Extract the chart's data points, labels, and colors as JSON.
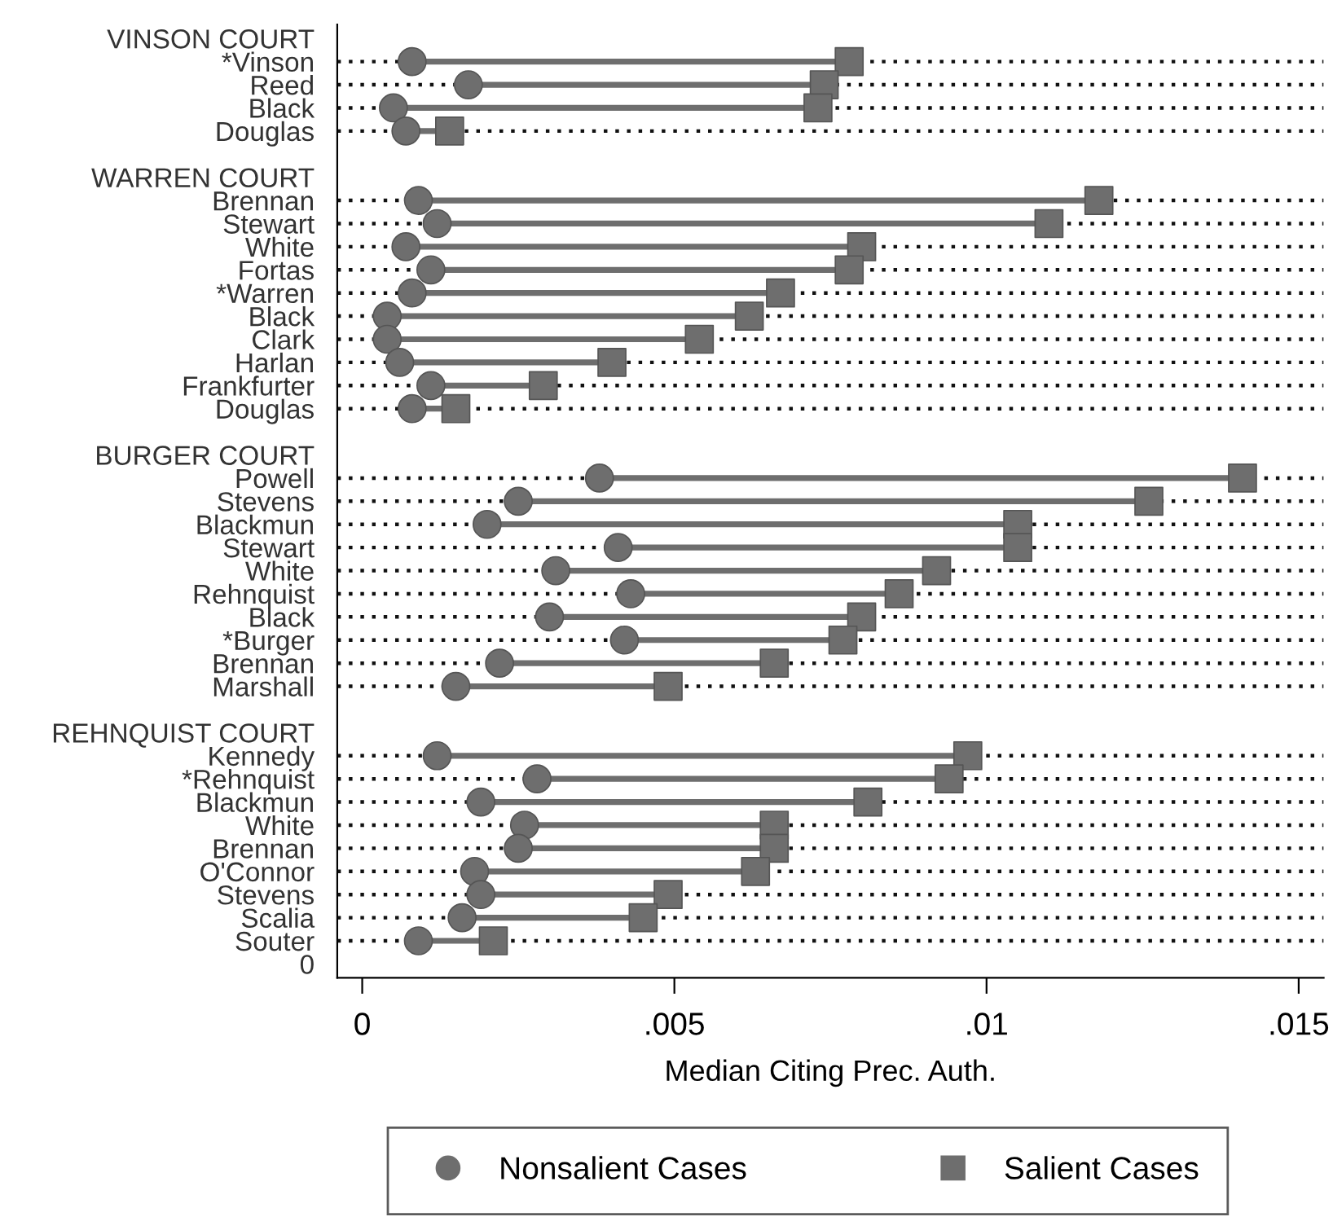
{
  "chart_data": {
    "type": "scatter",
    "xlabel": "Median Citing Prec. Auth.",
    "categories": [
      "VINSON COURT",
      "*Vinson",
      "Reed",
      "Black",
      "Douglas",
      null,
      "WARREN COURT",
      "Brennan",
      "Stewart",
      "White",
      "Fortas",
      "*Warren",
      "Black",
      "Clark",
      "Harlan",
      "Frankfurter",
      "Douglas",
      null,
      "BURGER COURT",
      "Powell",
      "Stevens",
      "Blackmun",
      "Stewart",
      "White",
      "Rehnquist",
      "Black",
      "*Burger",
      "Brennan",
      "Marshall",
      null,
      "REHNQUIST COURT",
      "Kennedy",
      "*Rehnquist",
      "Blackmun",
      "White",
      "Brennan",
      "O'Connor",
      "Stevens",
      "Scalia",
      "Souter",
      "0"
    ],
    "orientation": "horizontal",
    "series": [
      {
        "name": "Nonsalient Cases",
        "color": "#6e6e6e",
        "marker": "circle",
        "values": [
          null,
          0.0008,
          0.0017,
          0.0005,
          0.0007,
          null,
          null,
          0.0009,
          0.0012,
          0.0007,
          0.0011,
          0.0008,
          0.0004,
          0.0004,
          0.0006,
          0.0011,
          0.0008,
          null,
          null,
          0.0038,
          0.0025,
          0.002,
          0.0041,
          0.0031,
          0.0043,
          0.003,
          0.0042,
          0.0022,
          0.0015,
          null,
          null,
          0.0012,
          0.0028,
          0.0019,
          0.0026,
          0.0025,
          0.0018,
          0.0019,
          0.0016,
          0.0009,
          null
        ]
      },
      {
        "name": "Salient Cases",
        "color": "#6e6e6e",
        "marker": "square",
        "values": [
          null,
          0.0078,
          0.0074,
          0.0073,
          0.0014,
          null,
          null,
          0.0118,
          0.011,
          0.008,
          0.0078,
          0.0067,
          0.0062,
          0.0054,
          0.004,
          0.0029,
          0.0015,
          null,
          null,
          0.0141,
          0.0126,
          0.0105,
          0.0105,
          0.0092,
          0.0086,
          0.008,
          0.0077,
          0.0066,
          0.0049,
          null,
          null,
          0.0097,
          0.0094,
          0.0081,
          0.0066,
          0.0066,
          0.0063,
          0.0049,
          0.0045,
          0.0021,
          null
        ]
      }
    ],
    "xlim": [
      -0.0004,
      0.0154
    ],
    "xticks": [
      0,
      {
        "value": 0.005,
        "label": ".005"
      },
      {
        "value": 0.01,
        "label": ".01"
      },
      {
        "value": 0.015,
        "label": ".015"
      }
    ],
    "grid": "y",
    "legend": "bottom"
  }
}
